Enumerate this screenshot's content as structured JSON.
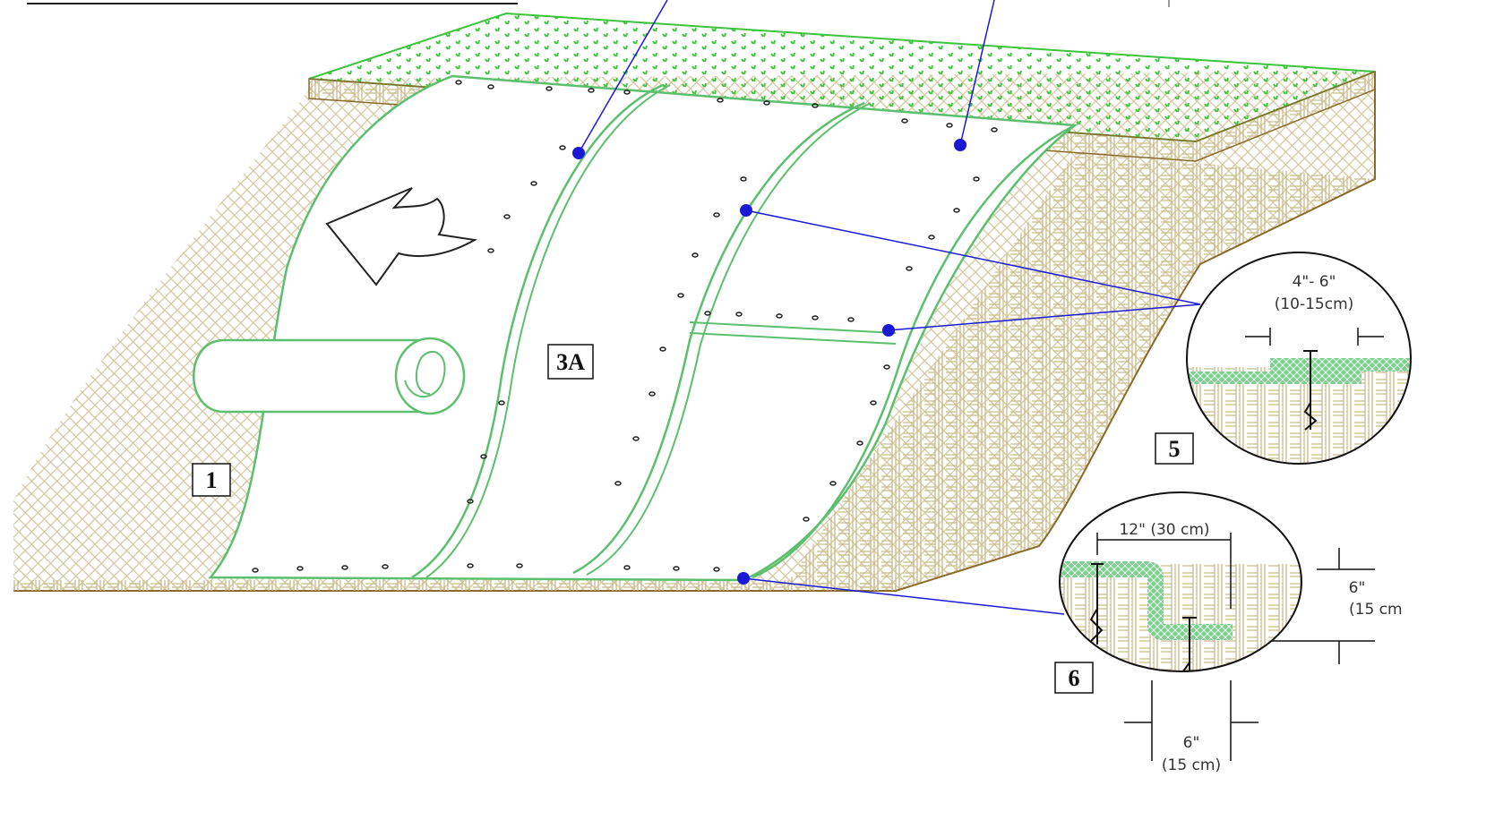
{
  "labels": {
    "slope": "1",
    "blanket": "3A",
    "detail_5": "5",
    "detail_6": "6"
  },
  "detail_5": {
    "overlap": "4\"- 6\"",
    "overlap_metric": "(10-15cm)"
  },
  "detail_6": {
    "width": "12\" (30 cm)",
    "depth": "6\"",
    "depth_metric": "(15 cm",
    "trench": "6\"",
    "trench_metric": "(15 cm)"
  }
}
